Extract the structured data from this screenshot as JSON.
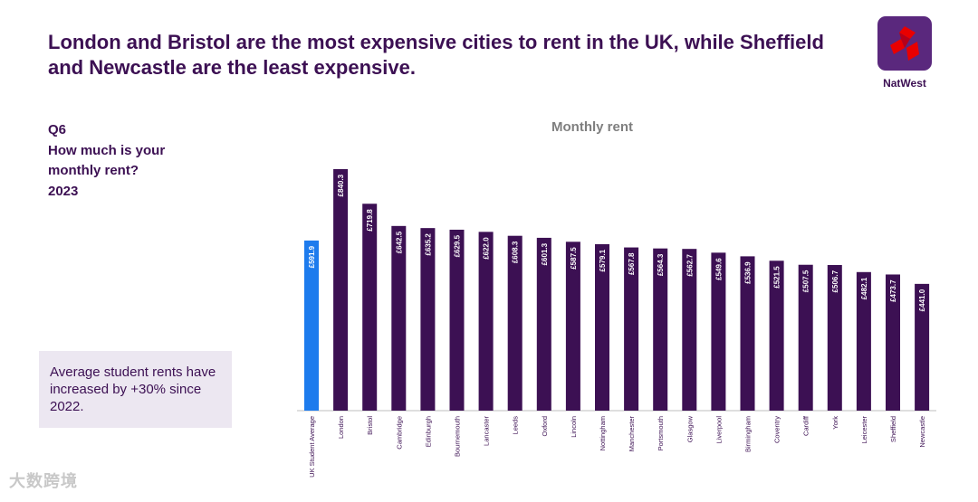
{
  "headline": "London and Bristol are the most expensive cities to rent in the UK, while Sheffield and Newcastle are the least expensive.",
  "logo": {
    "name": "NatWest",
    "icon": "natwest-logo-icon"
  },
  "question": {
    "number": "Q6",
    "text": "How much is your monthly rent?",
    "year": "2023"
  },
  "note": {
    "text": "Average student rents have increased by +30% since 2022."
  },
  "watermark": {
    "text": "大数跨境"
  },
  "colors": {
    "purple": "#3c1053",
    "blue": "#1d7bed",
    "brand": "#5a287d",
    "note_bg": "#ece7f1"
  },
  "chart_data": {
    "type": "bar",
    "title": "Monthly rent",
    "xlabel": "",
    "ylabel": "",
    "ylim": [
      0,
      900
    ],
    "categories": [
      "UK Student Average",
      "London",
      "Bristol",
      "Cambridge",
      "Edinburgh",
      "Bournemouth",
      "Lancaster",
      "Leeds",
      "Oxford",
      "Lincoln",
      "Nottingham",
      "Manchester",
      "Portsmouth",
      "Glasgow",
      "Liverpool",
      "Birmingham",
      "Coventry",
      "Cardiff",
      "York",
      "Leicester",
      "Sheffield",
      "Newcastle"
    ],
    "values": [
      591.9,
      840.3,
      719.8,
      642.5,
      635.2,
      629.5,
      622.0,
      608.3,
      601.3,
      587.5,
      579.1,
      567.8,
      564.3,
      562.7,
      549.6,
      536.9,
      521.5,
      507.5,
      506.7,
      482.1,
      473.7,
      441.0
    ],
    "data_labels": [
      "£591.9",
      "£840.3",
      "£719.8",
      "£642.5",
      "£635.2",
      "£629.5",
      "£622.0",
      "£608.3",
      "£601.3",
      "£587.5",
      "£579.1",
      "£567.8",
      "£564.3",
      "£562.7",
      "£549.6",
      "£536.9",
      "£521.5",
      "£507.5",
      "£506.7",
      "£482.1",
      "£473.7",
      "£441.0"
    ],
    "highlight_index": 0,
    "highlight_color": "#1d7bed",
    "bar_color": "#3c1053"
  }
}
